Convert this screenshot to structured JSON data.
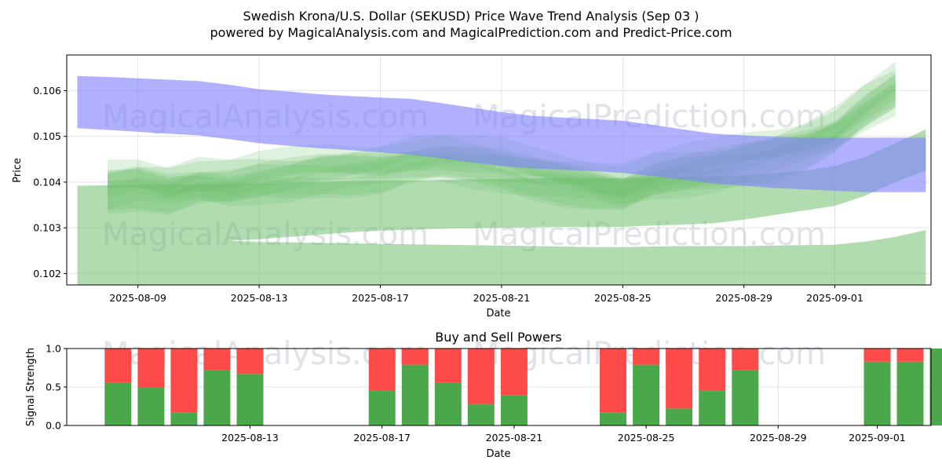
{
  "title_line1": "Swedish Krona/U.S. Dollar (SEKUSD) Price Wave Trend Analysis (Sep 03 )",
  "title_line2": "powered by MagicalAnalysis.com and MagicalPrediction.com and Predict-Price.com",
  "watermarks": [
    "MagicalAnalysis.com",
    "MagicalPrediction.com"
  ],
  "colors": {
    "blue_band": "#8080ff",
    "green_band": "#6fbf6f",
    "buy": "#4aa84a",
    "sell": "#ff4a4a"
  },
  "chart_data": [
    {
      "type": "area",
      "title": "",
      "xlabel": "Date",
      "ylabel": "Price",
      "x_dates": [
        "2025-08-07",
        "2025-08-08",
        "2025-08-09",
        "2025-08-10",
        "2025-08-11",
        "2025-08-12",
        "2025-08-13",
        "2025-08-14",
        "2025-08-15",
        "2025-08-16",
        "2025-08-17",
        "2025-08-18",
        "2025-08-19",
        "2025-08-20",
        "2025-08-21",
        "2025-08-22",
        "2025-08-23",
        "2025-08-24",
        "2025-08-25",
        "2025-08-26",
        "2025-08-27",
        "2025-08-28",
        "2025-08-29",
        "2025-08-30",
        "2025-08-31",
        "2025-09-01",
        "2025-09-02",
        "2025-09-03",
        "2025-09-04"
      ],
      "xticks": [
        "2025-08-09",
        "2025-08-13",
        "2025-08-17",
        "2025-08-21",
        "2025-08-25",
        "2025-08-29",
        "2025-09-01"
      ],
      "yticks": [
        0.102,
        0.103,
        0.104,
        0.105,
        0.106
      ],
      "ylim": [
        0.10175,
        0.10678
      ],
      "series": [
        {
          "name": "blue upper band",
          "upper": [
            0.10632,
            0.1063,
            0.10627,
            0.10624,
            0.10621,
            0.10613,
            0.10603,
            0.10598,
            0.10592,
            0.10588,
            0.10585,
            0.10582,
            0.10573,
            0.10563,
            0.10553,
            0.10545,
            0.10541,
            0.10538,
            0.10534,
            0.10525,
            0.10515,
            0.10506,
            0.10502,
            0.10499,
            0.10497,
            0.10497,
            0.10497,
            0.10497,
            0.10497
          ],
          "lower": [
            0.10518,
            0.10514,
            0.1051,
            0.10506,
            0.10502,
            0.10494,
            0.10485,
            0.10479,
            0.10474,
            0.1047,
            0.10465,
            0.1046,
            0.10452,
            0.10443,
            0.10435,
            0.1043,
            0.10427,
            0.10424,
            0.1042,
            0.10413,
            0.10405,
            0.10397,
            0.10392,
            0.10387,
            0.10384,
            0.10381,
            0.10378,
            0.10378,
            0.10378
          ]
        },
        {
          "name": "green wide band",
          "upper": [
            0.10392,
            0.10393,
            0.10394,
            0.10395,
            0.10396,
            0.10397,
            0.10398,
            0.10399,
            0.104,
            0.10402,
            0.10403,
            0.10404,
            0.10405,
            0.10406,
            0.10407,
            0.10408,
            0.10409,
            0.10409,
            0.10409,
            0.1041,
            0.10411,
            0.10412,
            0.10415,
            0.10419,
            0.10425,
            0.10435,
            0.10455,
            0.10485,
            0.10515
          ],
          "lower": [
            0.10272,
            0.10272,
            0.10271,
            0.10271,
            0.10271,
            0.10272,
            0.10275,
            0.1028,
            0.10285,
            0.1029,
            0.10294,
            0.10296,
            0.10298,
            0.10299,
            0.103,
            0.10301,
            0.10302,
            0.10302,
            0.10302,
            0.10305,
            0.10307,
            0.1031,
            0.10318,
            0.10328,
            0.10338,
            0.10348,
            0.1037,
            0.104,
            0.10425
          ]
        },
        {
          "name": "green lower band",
          "upper": [
            0.10272,
            0.10272,
            0.10271,
            0.10271,
            0.10271,
            0.10272,
            0.10269,
            0.10268,
            0.10267,
            0.10266,
            0.10265,
            0.10264,
            0.10263,
            0.10262,
            0.10261,
            0.1026,
            0.10259,
            0.10258,
            0.10258,
            0.10259,
            0.1026,
            0.1026,
            0.1026,
            0.10261,
            0.10262,
            0.10263,
            0.1027,
            0.1028,
            0.10295
          ],
          "lower": [
            0.10175,
            0.10175,
            0.10175,
            0.10175,
            0.10175,
            0.10175,
            0.10175,
            0.10175,
            0.10175,
            0.10175,
            0.10175,
            0.10175,
            0.10175,
            0.10175,
            0.10175,
            0.10175,
            0.10175,
            0.10175,
            0.10175,
            0.10175,
            0.10175,
            0.10175,
            0.10175,
            0.10175,
            0.10175,
            0.10175,
            0.10175,
            0.10175,
            0.10175
          ]
        },
        {
          "name": "green waves",
          "center": [
            0.1036,
            0.10385,
            0.10395,
            0.10385,
            0.104,
            0.10395,
            0.10405,
            0.1041,
            0.1042,
            0.10425,
            0.1043,
            0.10445,
            0.1045,
            0.1044,
            0.1043,
            0.10415,
            0.10405,
            0.10395,
            0.10385,
            0.1041,
            0.1042,
            0.1043,
            0.10445,
            0.1046,
            0.1048,
            0.1051,
            0.1056,
            0.106,
            0.1061
          ]
        }
      ]
    },
    {
      "type": "bar",
      "title": "Buy and Sell Powers",
      "xlabel": "Date",
      "ylabel": "Signal Strength",
      "xticks": [
        "2025-08-13",
        "2025-08-17",
        "2025-08-21",
        "2025-08-25",
        "2025-08-29",
        "2025-09-01"
      ],
      "yticks": [
        "0.0",
        "0.5",
        "1.0"
      ],
      "ylim": [
        0,
        1
      ],
      "categories": [
        "2025-08-09",
        "2025-08-10",
        "2025-08-11",
        "2025-08-12",
        "2025-08-13",
        "2025-08-17",
        "2025-08-18",
        "2025-08-19",
        "2025-08-20",
        "2025-08-21",
        "2025-08-24",
        "2025-08-25",
        "2025-08-26",
        "2025-08-27",
        "2025-08-28",
        "2025-09-01",
        "2025-09-02",
        "2025-09-03"
      ],
      "series": [
        {
          "name": "Buy",
          "values": [
            0.56,
            0.5,
            0.17,
            0.72,
            0.67,
            0.45,
            0.79,
            0.56,
            0.28,
            0.39,
            0.17,
            0.79,
            0.22,
            0.45,
            0.72,
            0.83,
            0.83,
            1.0
          ]
        },
        {
          "name": "Sell",
          "values": [
            0.44,
            0.5,
            0.83,
            0.28,
            0.33,
            0.55,
            0.21,
            0.44,
            0.72,
            0.61,
            0.83,
            0.21,
            0.78,
            0.55,
            0.28,
            0.17,
            0.17,
            0.0
          ]
        }
      ]
    }
  ]
}
